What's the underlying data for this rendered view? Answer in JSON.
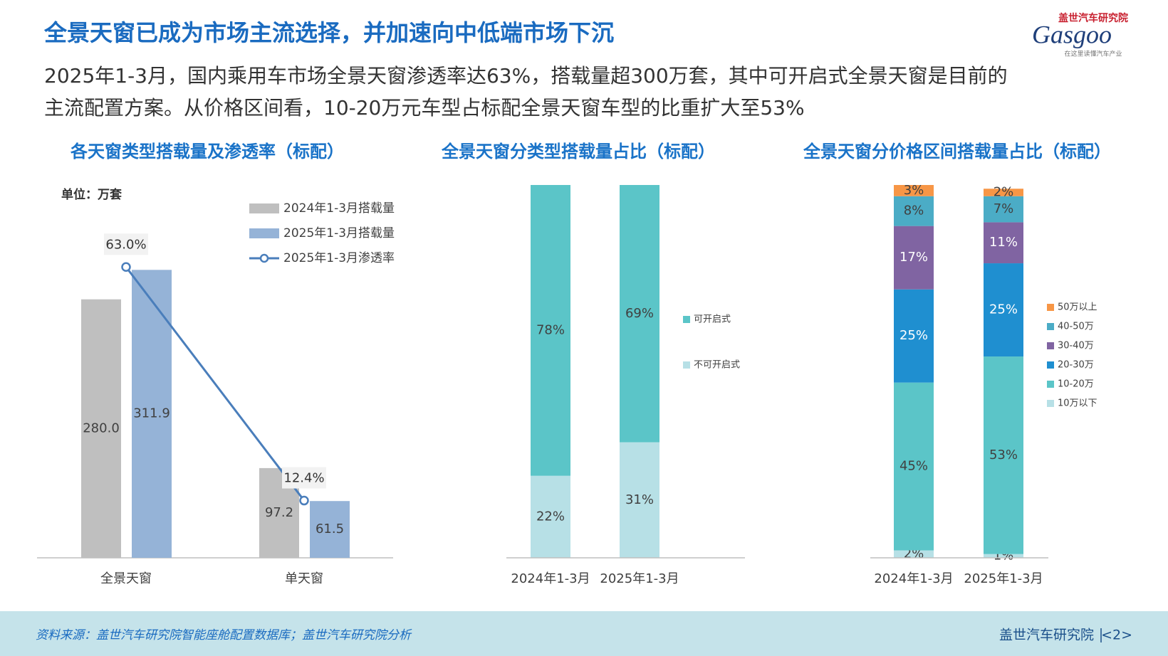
{
  "header": {
    "title": "全景天窗已成为市场主流选择，并加速向中低端市场下沉",
    "subtitle_lines": [
      "2025年1-3月，国内乘用车市场全景天窗渗透率达63%，搭载量超300万套，其中可开启式全景天窗是目前的",
      "主流配置方案。从价格区间看，10-20万元车型占标配全景天窗车型的比重扩大至53%"
    ]
  },
  "logo": {
    "top": "盖世汽车研究院",
    "name": "Gasgoo",
    "tagline": "在这里读懂汽车产业"
  },
  "chart_data": [
    {
      "type": "bar_line",
      "title": "各天窗类型搭载量及渗透率（标配）",
      "unit_label": "单位：万套",
      "categories": [
        "全景天窗",
        "单天窗"
      ],
      "series": [
        {
          "name": "2024年1-3月搭载量",
          "color": "#bfbfbf",
          "values": [
            280.0,
            97.2
          ],
          "value_labels": [
            "280.0",
            "97.2"
          ]
        },
        {
          "name": "2025年1-3月搭载量",
          "color": "#95b3d7",
          "values": [
            311.9,
            61.5
          ],
          "value_labels": [
            "311.9",
            "61.5"
          ]
        },
        {
          "name": "2025年1-3月渗透率",
          "type": "line",
          "axis": "y2",
          "color": "#4a7ebb",
          "values": [
            63.0,
            12.4
          ],
          "value_labels": [
            "63.0%",
            "12.4%"
          ]
        }
      ],
      "ylim": [
        0,
        400
      ],
      "y2lim": [
        0,
        80
      ],
      "grid": false
    },
    {
      "type": "stacked_bar",
      "title": "全景天窗分类型搭载量占比（标配）",
      "categories": [
        "2024年1-3月",
        "2025年1-3月"
      ],
      "series": [
        {
          "name": "不可开启式",
          "color": "#b7e0e6",
          "values": [
            22,
            31
          ],
          "value_labels": [
            "22%",
            "31%"
          ]
        },
        {
          "name": "可开启式",
          "color": "#5bc5c8",
          "values": [
            78,
            69
          ],
          "value_labels": [
            "78%",
            "69%"
          ]
        }
      ],
      "ylim": [
        0,
        100
      ],
      "grid": false,
      "legend": "right"
    },
    {
      "type": "stacked_bar",
      "title": "全景天窗分价格区间搭载量占比（标配）",
      "categories": [
        "2024年1-3月",
        "2025年1-3月"
      ],
      "series": [
        {
          "name": "10万以下",
          "color": "#b7e0e6",
          "values": [
            2,
            1
          ],
          "value_labels": [
            "2%",
            "1%"
          ]
        },
        {
          "name": "10-20万",
          "color": "#5bc5c8",
          "values": [
            45,
            53
          ],
          "value_labels": [
            "45%",
            "53%"
          ]
        },
        {
          "name": "20-30万",
          "color": "#1f8fd0",
          "values": [
            25,
            25
          ],
          "value_labels": [
            "25%",
            "25%"
          ]
        },
        {
          "name": "30-40万",
          "color": "#8064a2",
          "values": [
            17,
            11
          ],
          "value_labels": [
            "17%",
            "11%"
          ]
        },
        {
          "name": "40-50万",
          "color": "#4bacc6",
          "values": [
            8,
            7
          ],
          "value_labels": [
            "8%",
            "7%"
          ]
        },
        {
          "name": "50万以上",
          "color": "#f79646",
          "values": [
            3,
            2
          ],
          "value_labels": [
            "3%",
            "2%"
          ]
        }
      ],
      "ylim": [
        0,
        100
      ],
      "grid": false,
      "legend": "right"
    }
  ],
  "footer": {
    "source": "资料来源：盖世汽车研究院智能座舱配置数据库；盖世汽车研究院分析",
    "org": "盖世汽车研究院",
    "page": "<2>"
  }
}
